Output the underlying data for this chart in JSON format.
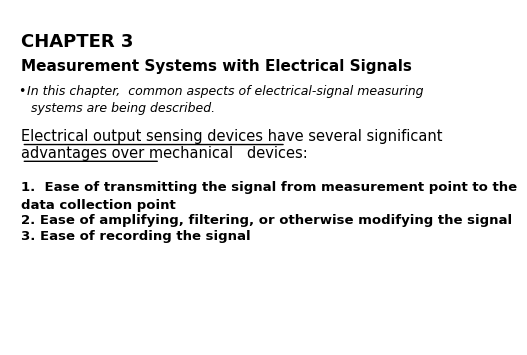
{
  "background_color": "#ffffff",
  "title_line1": "CHAPTER 3",
  "title_line2": "Measurement Systems with Electrical Signals",
  "bullet_text_line1": "In this chapter,  common aspects of electrical-signal measuring",
  "bullet_text_line2": "systems are being described.",
  "underline_text_line1": "Electrical output sensing devices have several significant",
  "underline_text_line2": "advantages over mechanical   devices:",
  "item1_text": "1.  Ease of transmitting the signal from measurement point to the",
  "item1_text2": "data collection point",
  "item2_text": "2. Ease of amplifying, filtering, or otherwise modifying the signal",
  "item3_text": "3. Ease of recording the signal",
  "title1_fontsize": 13,
  "title2_fontsize": 11,
  "bullet_fontsize": 9,
  "underline_fontsize": 10.5,
  "item_fontsize": 9.5
}
